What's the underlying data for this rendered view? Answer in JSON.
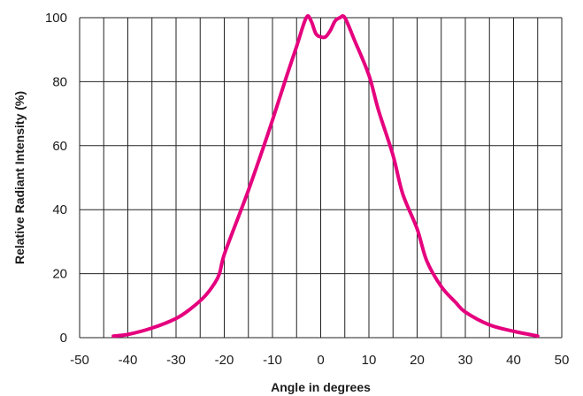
{
  "chart_data": {
    "type": "line",
    "xlabel": "Angle in degrees",
    "ylabel": "Relative Radiant Intensity (%)",
    "xlim": [
      -50,
      50
    ],
    "ylim": [
      0,
      100
    ],
    "x_ticks": [
      -50,
      -40,
      -30,
      -20,
      -10,
      0,
      10,
      20,
      30,
      40,
      50
    ],
    "y_ticks": [
      0,
      20,
      40,
      60,
      80,
      100
    ],
    "x_tick_labels": [
      "-50",
      "-40",
      "-30",
      "-20",
      "-10",
      "0",
      "10",
      "20",
      "30",
      "40",
      "50"
    ],
    "y_tick_labels": [
      "0",
      "20",
      "40",
      "60",
      "80",
      "100"
    ],
    "grid": true,
    "vertical_grid_step": 5,
    "line_color": "#e5007e",
    "series": [
      {
        "x": [
          -43,
          -40,
          -35,
          -30,
          -27,
          -24,
          -22,
          -21,
          -20,
          -17,
          -15,
          -12,
          -10,
          -7,
          -5,
          -3,
          -2,
          -1,
          0,
          1,
          2,
          3,
          4,
          5,
          7,
          10,
          12,
          15,
          17,
          20,
          22,
          25,
          28,
          30,
          35,
          40,
          45
        ],
        "y": [
          0.5,
          1,
          3,
          6,
          9,
          13,
          17,
          20,
          26,
          38,
          46,
          59,
          68,
          82,
          91,
          100,
          99,
          95,
          94,
          94,
          96,
          99,
          100,
          100,
          93,
          82,
          71,
          57,
          45,
          34,
          24,
          16,
          11,
          8,
          4,
          2,
          0.5
        ]
      }
    ]
  }
}
